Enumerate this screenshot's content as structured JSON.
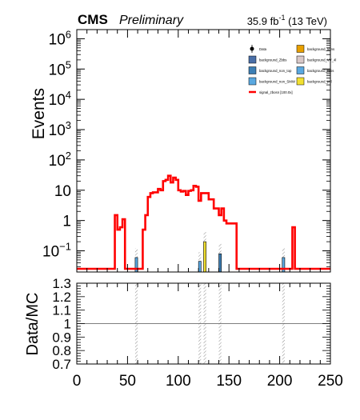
{
  "header": {
    "experiment": "CMS",
    "status": "Preliminary",
    "lumi_value": "35.9 fb",
    "lumi_exp": "-1",
    "lumi_energy": "(13 TeV)"
  },
  "chart_data": [
    {
      "id": "top-panel",
      "type": "histogram",
      "title": "",
      "ylabel": "Events",
      "xlabel": "",
      "xlim": [
        0,
        250
      ],
      "ylim": [
        0.02,
        2000000
      ],
      "yscale": "log",
      "ytick_values": [
        0.1,
        1,
        10,
        100,
        1000,
        10000,
        100000,
        1000000
      ],
      "ytick_labels": [
        {
          "base": "10",
          "exp": "−1"
        },
        {
          "base": "1",
          "exp": ""
        },
        {
          "base": "10",
          "exp": ""
        },
        {
          "base": "10",
          "exp": "2"
        },
        {
          "base": "10",
          "exp": "3"
        },
        {
          "base": "10",
          "exp": "4"
        },
        {
          "base": "10",
          "exp": "5"
        },
        {
          "base": "10",
          "exp": "6"
        }
      ],
      "legend": {
        "position": "top-right",
        "entries": [
          {
            "label": "Data",
            "kind": "marker",
            "color": "#000000"
          },
          {
            "label": "background_50ns",
            "kind": "box",
            "color": "#e8a000"
          },
          {
            "label": "background_Zbbs",
            "kind": "box",
            "color": "#4a6fa8"
          },
          {
            "label": "background_VV_4l",
            "kind": "box",
            "color": "#d8c8c8"
          },
          {
            "label": "background_non_top",
            "kind": "box",
            "color": "#3d7fb5"
          },
          {
            "label": "background_Wbs",
            "kind": "box",
            "color": "#5aa8e0"
          },
          {
            "label": "background_non_SMW",
            "kind": "box",
            "color": "#5aa8e0"
          },
          {
            "label": "background_pol",
            "kind": "box",
            "color": "#f2e030"
          },
          {
            "label": "signal_zbosn [100.0x]",
            "kind": "line",
            "color": "#ff0000"
          }
        ]
      },
      "signal_series": {
        "name": "signal_zbosn [100.0x]",
        "color": "#ff0000",
        "bin_width": 2.5,
        "bins": [
          [
            37.5,
            1.5
          ],
          [
            40.0,
            0.5
          ],
          [
            42.5,
            0.6
          ],
          [
            45.0,
            1.1
          ],
          [
            65.0,
            0.5
          ],
          [
            67.5,
            1.5
          ],
          [
            70.0,
            6.0
          ],
          [
            72.5,
            8.0
          ],
          [
            75.0,
            8.5
          ],
          [
            77.5,
            8.5
          ],
          [
            80.0,
            11.0
          ],
          [
            82.5,
            10.0
          ],
          [
            85.0,
            20.0
          ],
          [
            87.5,
            22.0
          ],
          [
            90.0,
            30.0
          ],
          [
            92.5,
            18.0
          ],
          [
            95.0,
            26.0
          ],
          [
            97.5,
            22.0
          ],
          [
            100.0,
            10.0
          ],
          [
            102.5,
            9.0
          ],
          [
            105.0,
            9.5
          ],
          [
            107.5,
            7.0
          ],
          [
            110.0,
            9.5
          ],
          [
            112.5,
            10.0
          ],
          [
            115.0,
            14.0
          ],
          [
            117.5,
            13.0
          ],
          [
            120.0,
            4.5
          ],
          [
            122.5,
            8.0
          ],
          [
            125.0,
            8.0
          ],
          [
            127.5,
            8.0
          ],
          [
            130.0,
            5.0
          ],
          [
            132.5,
            5.0
          ],
          [
            135.0,
            2.5
          ],
          [
            137.5,
            2.5
          ],
          [
            140.0,
            1.5
          ],
          [
            142.5,
            2.5
          ],
          [
            145.0,
            1.0
          ],
          [
            147.5,
            0.8
          ],
          [
            150.0,
            0.8
          ],
          [
            152.5,
            0.8
          ],
          [
            155.0,
            0.8
          ],
          [
            212.5,
            0.6
          ]
        ]
      },
      "background_bins": [
        {
          "x": 57.5,
          "width": 2.5,
          "value": 0.06,
          "color": "#5aa8e0",
          "uncertainty_top": 0.12
        },
        {
          "x": 120.0,
          "width": 2.5,
          "value": 0.045,
          "color": "#5aa8e0",
          "uncertainty_top": 0.09
        },
        {
          "x": 125.0,
          "width": 2.5,
          "value": 0.2,
          "color": "#f2e030",
          "uncertainty_top": 0.42
        },
        {
          "x": 140.0,
          "width": 2.5,
          "value": 0.08,
          "color": "#3d7fb5",
          "uncertainty_top": 0.17
        },
        {
          "x": 202.5,
          "width": 2.5,
          "value": 0.06,
          "color": "#5aa8e0",
          "uncertainty_top": 0.12
        }
      ]
    },
    {
      "id": "ratio-panel",
      "type": "ratio",
      "ylabel": "Data/MC",
      "xlabel": "",
      "xlim": [
        0,
        250
      ],
      "ylim": [
        0.7,
        1.3
      ],
      "ytick_labels": [
        "0.7",
        "0.8",
        "0.9",
        "1",
        "1.1",
        "1.2",
        "1.3"
      ],
      "xtick_labels": [
        "0",
        "50",
        "100",
        "150",
        "200",
        "250"
      ],
      "reference_line": 1.0,
      "uncertainty_bins": [
        {
          "x": 57.5,
          "width": 2.5
        },
        {
          "x": 120.0,
          "width": 2.5
        },
        {
          "x": 125.0,
          "width": 2.5
        },
        {
          "x": 140.0,
          "width": 2.5
        },
        {
          "x": 202.5,
          "width": 2.5
        }
      ]
    }
  ]
}
